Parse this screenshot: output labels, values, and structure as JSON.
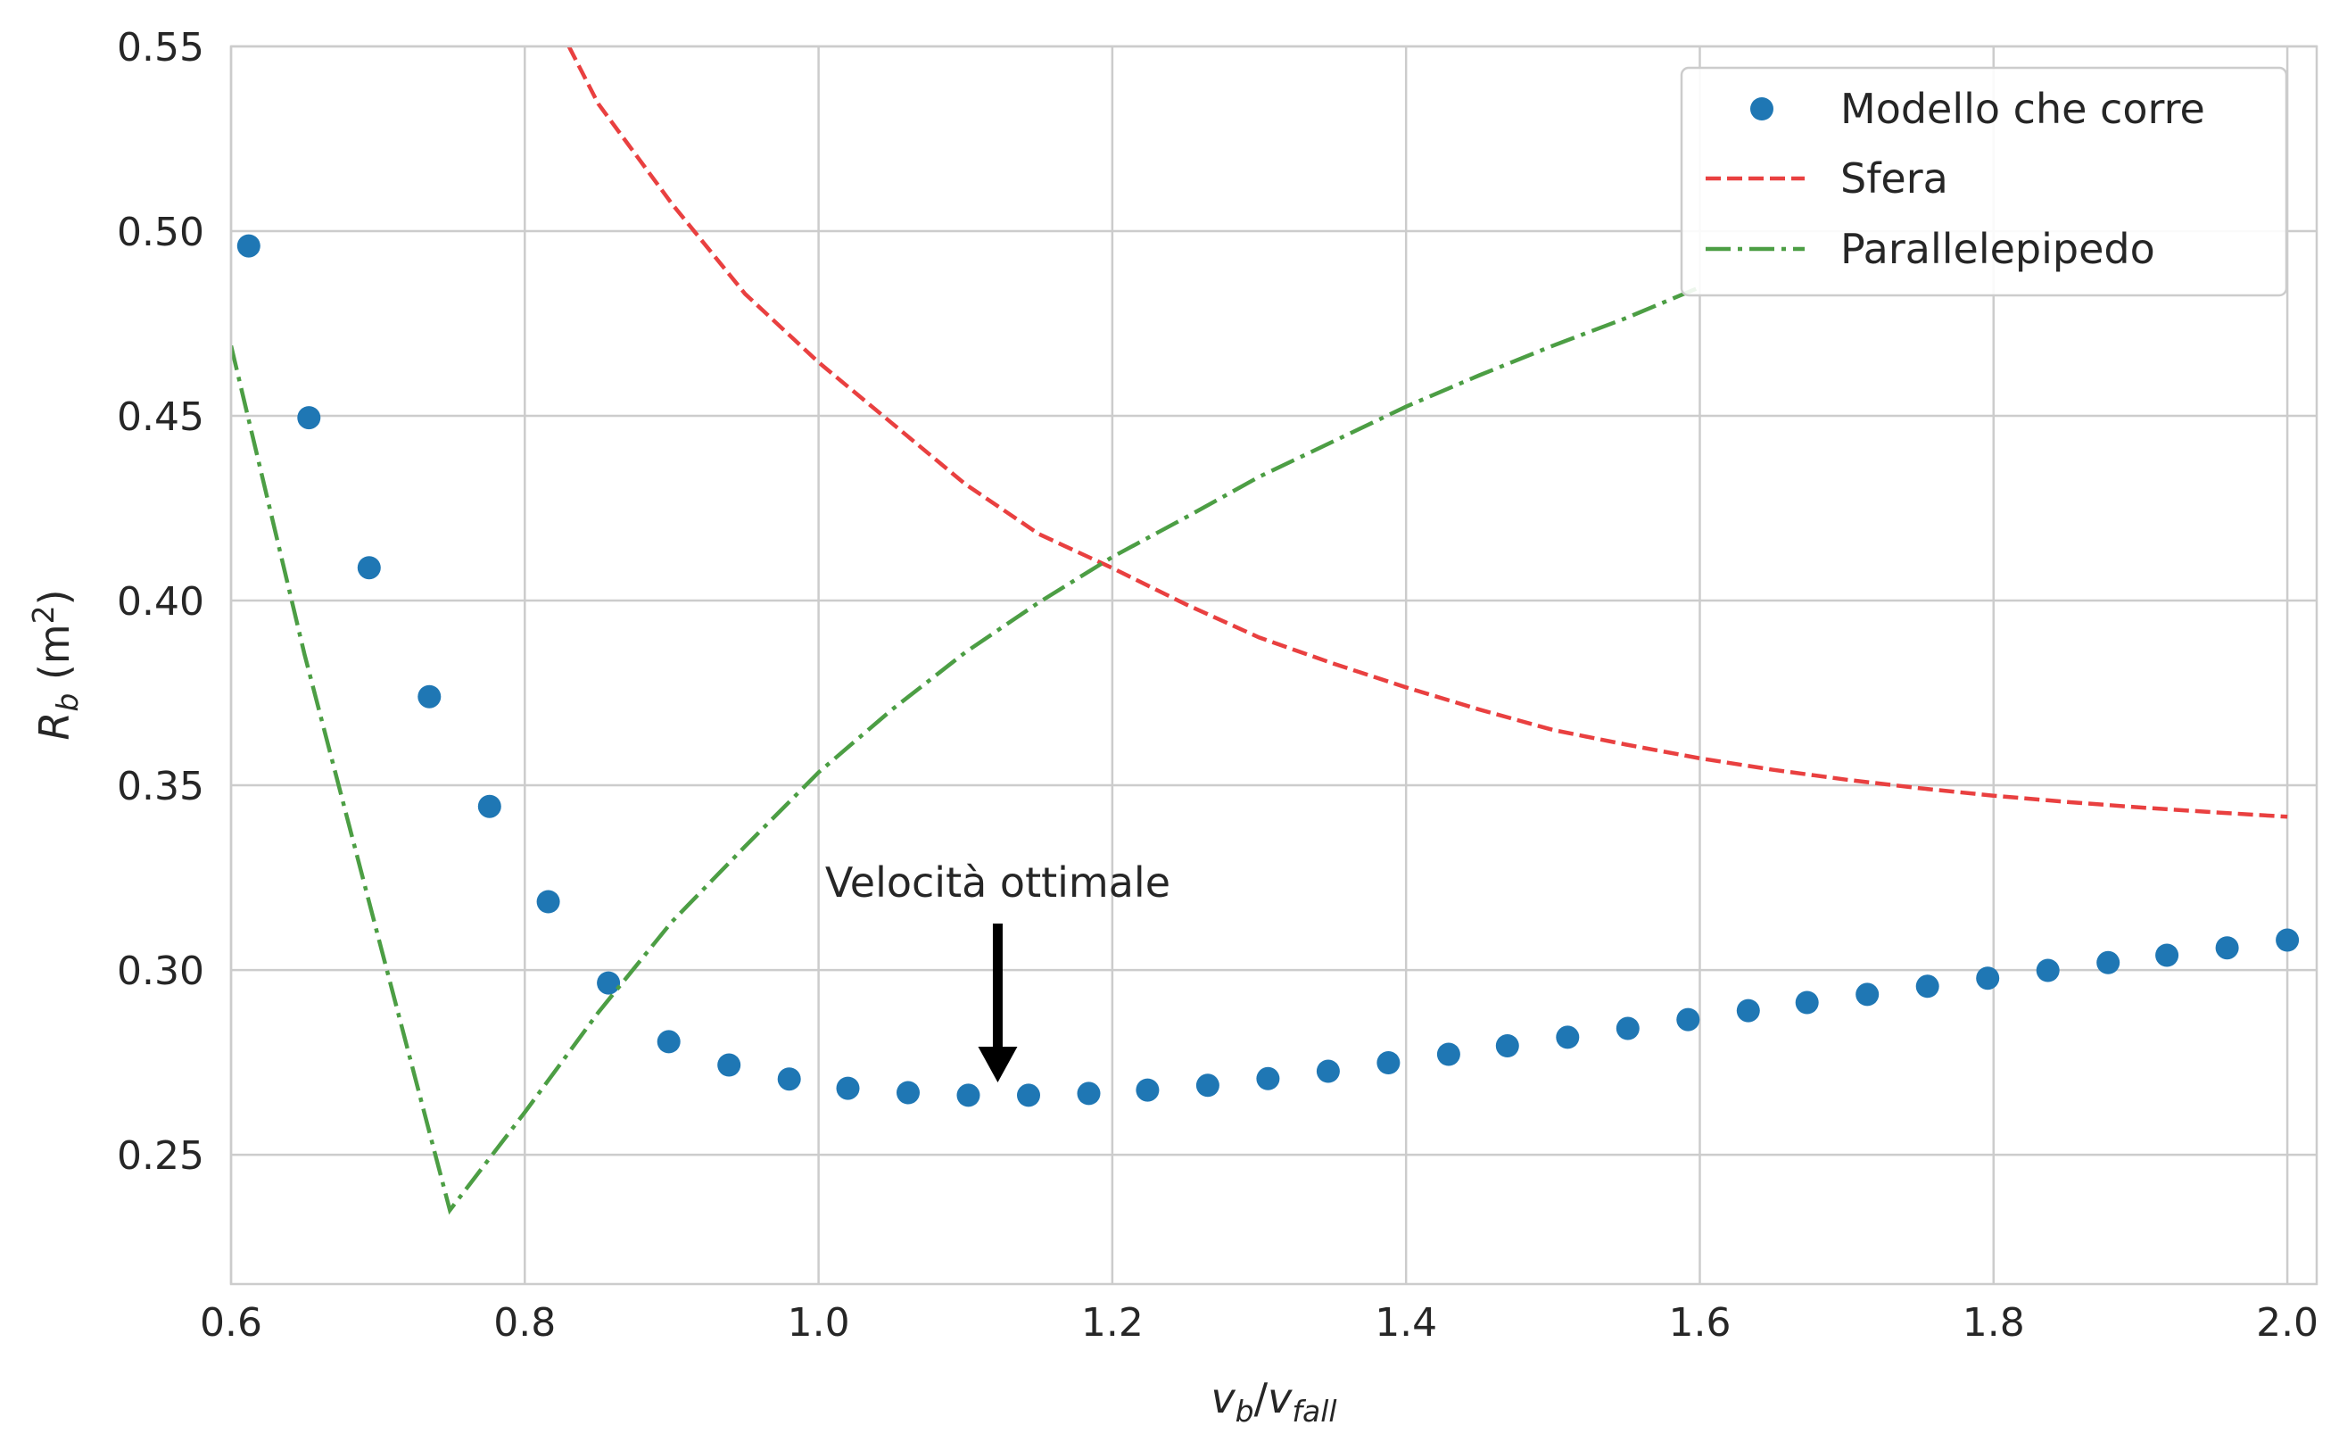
{
  "chart_data": {
    "type": "scatter",
    "xlabel": "v_b/v_fall",
    "ylabel": "R_b (m²)",
    "xlim": [
      0.6,
      2.02
    ],
    "ylim": [
      0.215,
      0.55
    ],
    "xticks": [
      "0.6",
      "0.8",
      "1.0",
      "1.2",
      "1.4",
      "1.6",
      "1.8",
      "2.0"
    ],
    "yticks": [
      "0.25",
      "0.30",
      "0.35",
      "0.40",
      "0.45",
      "0.50",
      "0.55"
    ],
    "grid": true,
    "legend_position": "top-right",
    "annotation": {
      "text": "Velocità ottimale",
      "x": 1.122,
      "y": 0.2696
    },
    "series": [
      {
        "name": "Modello che corre",
        "kind": "scatter",
        "color": "#1f77b4",
        "points": [
          [
            0.612,
            0.496
          ],
          [
            0.653,
            0.4495
          ],
          [
            0.694,
            0.4089
          ],
          [
            0.735,
            0.374
          ],
          [
            0.776,
            0.3443
          ],
          [
            0.816,
            0.3185
          ],
          [
            0.857,
            0.2965
          ],
          [
            0.898,
            0.2806
          ],
          [
            0.939,
            0.2743
          ],
          [
            0.98,
            0.2705
          ],
          [
            1.02,
            0.268
          ],
          [
            1.061,
            0.2668
          ],
          [
            1.102,
            0.2661
          ],
          [
            1.143,
            0.2661
          ],
          [
            1.184,
            0.2666
          ],
          [
            1.224,
            0.2675
          ],
          [
            1.265,
            0.2688
          ],
          [
            1.306,
            0.2706
          ],
          [
            1.347,
            0.2726
          ],
          [
            1.388,
            0.2749
          ],
          [
            1.429,
            0.2772
          ],
          [
            1.469,
            0.2795
          ],
          [
            1.51,
            0.2818
          ],
          [
            1.551,
            0.2842
          ],
          [
            1.592,
            0.2866
          ],
          [
            1.633,
            0.289
          ],
          [
            1.673,
            0.2912
          ],
          [
            1.714,
            0.2934
          ],
          [
            1.755,
            0.2956
          ],
          [
            1.796,
            0.2978
          ],
          [
            1.837,
            0.2999
          ],
          [
            1.878,
            0.302
          ],
          [
            1.918,
            0.304
          ],
          [
            1.959,
            0.306
          ],
          [
            2.0,
            0.3081
          ]
        ]
      },
      {
        "name": "Sfera",
        "kind": "line",
        "style": "dashed",
        "color": "#e94040",
        "points": [
          [
            0.83,
            0.55
          ],
          [
            0.85,
            0.5345
          ],
          [
            0.9,
            0.5075
          ],
          [
            0.95,
            0.483
          ],
          [
            1.0,
            0.4645
          ],
          [
            1.05,
            0.448
          ],
          [
            1.1,
            0.4315
          ],
          [
            1.15,
            0.418
          ],
          [
            1.2,
            0.4088
          ],
          [
            1.25,
            0.399
          ],
          [
            1.3,
            0.39
          ],
          [
            1.35,
            0.383
          ],
          [
            1.4,
            0.3765
          ],
          [
            1.45,
            0.3705
          ],
          [
            1.5,
            0.365
          ],
          [
            1.55,
            0.361
          ],
          [
            1.6,
            0.3573
          ],
          [
            1.65,
            0.3542
          ],
          [
            1.7,
            0.3515
          ],
          [
            1.75,
            0.3492
          ],
          [
            1.8,
            0.3472
          ],
          [
            1.85,
            0.3455
          ],
          [
            1.9,
            0.344
          ],
          [
            1.95,
            0.3427
          ],
          [
            2.0,
            0.3415
          ]
        ]
      },
      {
        "name": "Parallelepipedo",
        "kind": "line",
        "style": "dash-dot",
        "color": "#4c9e44",
        "points": [
          [
            0.6,
            0.469
          ],
          [
            0.65,
            0.3855
          ],
          [
            0.7,
            0.3093
          ],
          [
            0.749,
            0.235
          ],
          [
            0.8,
            0.2615
          ],
          [
            0.85,
            0.2885
          ],
          [
            0.9,
            0.313
          ],
          [
            0.95,
            0.3335
          ],
          [
            1.0,
            0.3535
          ],
          [
            1.05,
            0.3705
          ],
          [
            1.1,
            0.386
          ],
          [
            1.15,
            0.3995
          ],
          [
            1.2,
            0.4118
          ],
          [
            1.25,
            0.4225
          ],
          [
            1.3,
            0.4335
          ],
          [
            1.35,
            0.443
          ],
          [
            1.4,
            0.4525
          ],
          [
            1.45,
            0.461
          ],
          [
            1.5,
            0.469
          ],
          [
            1.55,
            0.4765
          ],
          [
            1.6,
            0.4848
          ]
        ]
      }
    ]
  }
}
